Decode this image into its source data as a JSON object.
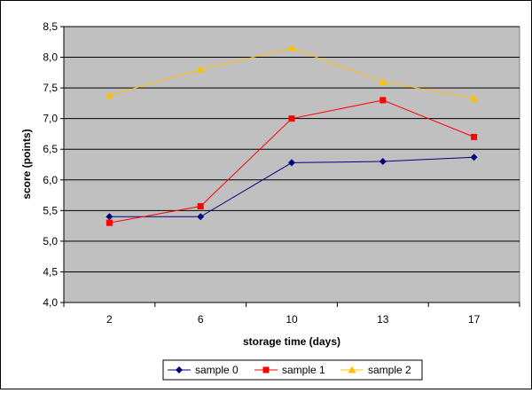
{
  "chart_data": {
    "type": "line",
    "xlabel": "storage time (days)",
    "ylabel": "score (points)",
    "categories": [
      "2",
      "6",
      "10",
      "13",
      "17"
    ],
    "ylim": [
      4.0,
      8.5
    ],
    "yticks": [
      "4,0",
      "4,5",
      "5,0",
      "5,5",
      "6,0",
      "6,5",
      "7,0",
      "7,5",
      "8,0",
      "8,5"
    ],
    "ytick_values": [
      4.0,
      4.5,
      5.0,
      5.5,
      6.0,
      6.5,
      7.0,
      7.5,
      8.0,
      8.5
    ],
    "grid": "horizontal",
    "legend_position": "bottom",
    "plot_background": "#c0c0c0",
    "series": [
      {
        "name": "sample 0",
        "values": [
          5.4,
          5.4,
          6.28,
          6.3,
          6.37
        ],
        "color": "#000080",
        "marker": "diamond"
      },
      {
        "name": "sample 1",
        "values": [
          5.3,
          5.57,
          7.0,
          7.3,
          6.7
        ],
        "color": "#ff0000",
        "marker": "square"
      },
      {
        "name": "sample 2",
        "values": [
          7.38,
          7.8,
          8.15,
          7.6,
          7.33
        ],
        "color": "#ffc000",
        "marker": "triangle"
      }
    ]
  }
}
